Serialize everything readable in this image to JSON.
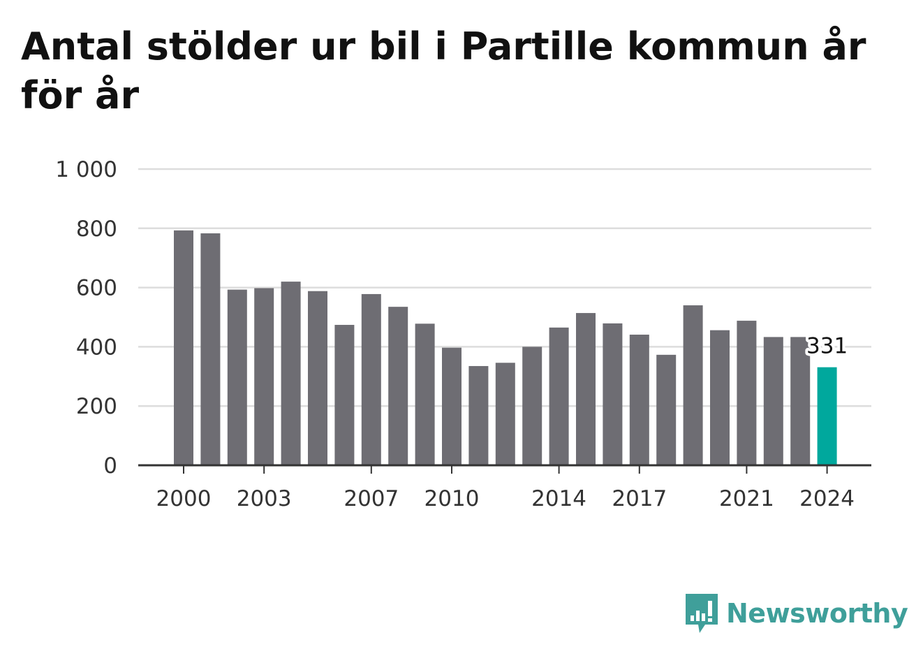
{
  "title": "Antal stölder ur bil i Partille kommun år för år",
  "brand": "Newsworthy",
  "colors": {
    "bar": "#6e6d73",
    "highlight": "#00a89d",
    "grid": "#dddddd",
    "axis": "#333333",
    "brand": "#3f9f9a"
  },
  "chart_data": {
    "type": "bar",
    "categories": [
      "2000",
      "2001",
      "2002",
      "2003",
      "2004",
      "2005",
      "2006",
      "2007",
      "2008",
      "2009",
      "2010",
      "2011",
      "2012",
      "2013",
      "2014",
      "2015",
      "2016",
      "2017",
      "2018",
      "2019",
      "2020",
      "2021",
      "2022",
      "2023",
      "2024"
    ],
    "values": [
      793,
      783,
      593,
      598,
      620,
      588,
      474,
      578,
      535,
      478,
      397,
      335,
      346,
      400,
      465,
      514,
      479,
      441,
      373,
      540,
      456,
      488,
      433,
      433,
      331
    ],
    "x_tick_labels": [
      "2000",
      "2003",
      "2007",
      "2010",
      "2014",
      "2017",
      "2021",
      "2024"
    ],
    "y_ticks": [
      0,
      200,
      400,
      600,
      800,
      1000
    ],
    "y_tick_labels": [
      "0",
      "200",
      "400",
      "600",
      "800",
      "1 000"
    ],
    "ylim": [
      0,
      1000
    ],
    "highlight_category": "2024",
    "data_label": "331",
    "grid": true
  }
}
